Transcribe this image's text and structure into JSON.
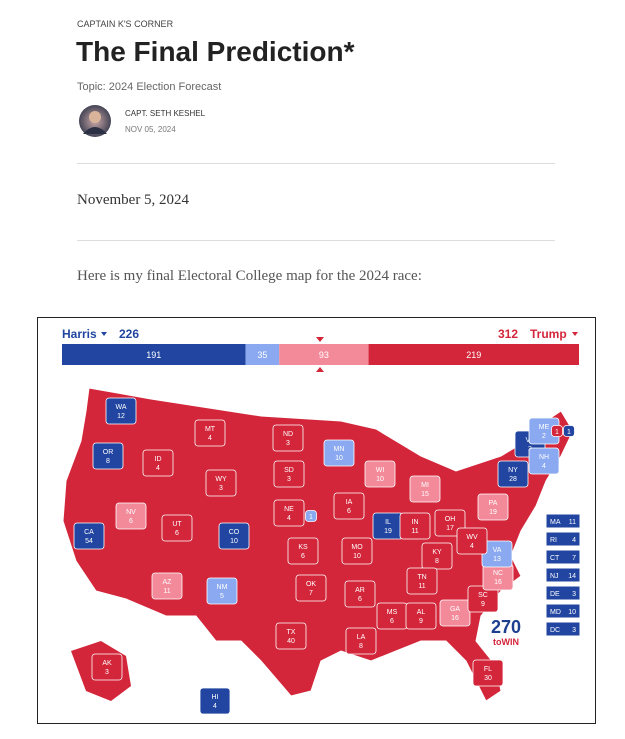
{
  "header": {
    "kicker": "CAPTAIN K'S CORNER",
    "title": "The Final Prediction*",
    "topic": "Topic: 2024 Election Forecast",
    "author": "CAPT. SETH KESHEL",
    "date": "NOV 05, 2024"
  },
  "body": {
    "dateline": "November 5, 2024",
    "intro": "Here is my final Electoral College map for the 2024 race:"
  },
  "map": {
    "left": {
      "name": "Harris",
      "total": 226,
      "color": "#2145a0"
    },
    "right": {
      "name": "Trump",
      "total": 312,
      "color": "#d3263a"
    },
    "bar": [
      {
        "value": 191,
        "color": "#2145a0"
      },
      {
        "value": 35,
        "color": "#8aa9f0"
      },
      {
        "value": 93,
        "color": "#f38a9a"
      },
      {
        "value": 219,
        "color": "#d3263a"
      }
    ],
    "states": [
      {
        "abbr": "WA",
        "votes": 12,
        "color": "#2145a0"
      },
      {
        "abbr": "OR",
        "votes": 8,
        "color": "#2145a0"
      },
      {
        "abbr": "CA",
        "votes": 54,
        "color": "#2145a0"
      },
      {
        "abbr": "NV",
        "votes": 6,
        "color": "#f38a9a"
      },
      {
        "abbr": "ID",
        "votes": 4,
        "color": "#d3263a"
      },
      {
        "abbr": "MT",
        "votes": 4,
        "color": "#d3263a"
      },
      {
        "abbr": "WY",
        "votes": 3,
        "color": "#d3263a"
      },
      {
        "abbr": "UT",
        "votes": 6,
        "color": "#d3263a"
      },
      {
        "abbr": "CO",
        "votes": 10,
        "color": "#2145a0"
      },
      {
        "abbr": "AZ",
        "votes": 11,
        "color": "#f38a9a"
      },
      {
        "abbr": "NM",
        "votes": 5,
        "color": "#8aa9f0"
      },
      {
        "abbr": "ND",
        "votes": 3,
        "color": "#d3263a"
      },
      {
        "abbr": "SD",
        "votes": 3,
        "color": "#d3263a"
      },
      {
        "abbr": "NE",
        "votes": 4,
        "color": "#d3263a"
      },
      {
        "votes": 1,
        "color": "#8aa9f0"
      },
      {
        "abbr": "KS",
        "votes": 6,
        "color": "#d3263a"
      },
      {
        "abbr": "OK",
        "votes": 7,
        "color": "#d3263a"
      },
      {
        "abbr": "TX",
        "votes": 40,
        "color": "#d3263a"
      },
      {
        "abbr": "MN",
        "votes": 10,
        "color": "#8aa9f0"
      },
      {
        "abbr": "IA",
        "votes": 6,
        "color": "#d3263a"
      },
      {
        "abbr": "MO",
        "votes": 10,
        "color": "#d3263a"
      },
      {
        "abbr": "AR",
        "votes": 6,
        "color": "#d3263a"
      },
      {
        "abbr": "LA",
        "votes": 8,
        "color": "#d3263a"
      },
      {
        "abbr": "WI",
        "votes": 10,
        "color": "#f38a9a"
      },
      {
        "abbr": "IL",
        "votes": 19,
        "color": "#2145a0"
      },
      {
        "abbr": "MS",
        "votes": 6,
        "color": "#d3263a"
      },
      {
        "abbr": "MI",
        "votes": 15,
        "color": "#f38a9a"
      },
      {
        "abbr": "IN",
        "votes": 11,
        "color": "#d3263a"
      },
      {
        "abbr": "KY",
        "votes": 8,
        "color": "#d3263a"
      },
      {
        "abbr": "TN",
        "votes": 11,
        "color": "#d3263a"
      },
      {
        "abbr": "AL",
        "votes": 9,
        "color": "#d3263a"
      },
      {
        "abbr": "OH",
        "votes": 17,
        "color": "#d3263a"
      },
      {
        "abbr": "GA",
        "votes": 16,
        "color": "#f38a9a"
      },
      {
        "abbr": "FL",
        "votes": 30,
        "color": "#d3263a"
      },
      {
        "abbr": "SC",
        "votes": 9,
        "color": "#d3263a"
      },
      {
        "abbr": "NC",
        "votes": 16,
        "color": "#f38a9a"
      },
      {
        "abbr": "VA",
        "votes": 13,
        "color": "#8aa9f0"
      },
      {
        "abbr": "WV",
        "votes": 4,
        "color": "#d3263a"
      },
      {
        "abbr": "PA",
        "votes": 19,
        "color": "#f38a9a"
      },
      {
        "abbr": "NY",
        "votes": 28,
        "color": "#2145a0"
      },
      {
        "abbr": "VT",
        "votes": 3,
        "color": "#2145a0"
      },
      {
        "abbr": "NH",
        "votes": 4,
        "color": "#8aa9f0"
      },
      {
        "abbr": "ME",
        "votes": 2,
        "color": "#8aa9f0"
      },
      {
        "votes": 1,
        "color": "#d3263a"
      },
      {
        "votes": 1,
        "color": "#2145a0"
      },
      {
        "abbr": "AK",
        "votes": 3,
        "color": "#d3263a"
      },
      {
        "abbr": "HI",
        "votes": 4,
        "color": "#2145a0"
      }
    ],
    "small_states": [
      {
        "abbr": "MA",
        "votes": 11,
        "color": "#2145a0"
      },
      {
        "abbr": "RI",
        "votes": 4,
        "color": "#2145a0"
      },
      {
        "abbr": "CT",
        "votes": 7,
        "color": "#2145a0"
      },
      {
        "abbr": "NJ",
        "votes": 14,
        "color": "#2145a0"
      },
      {
        "abbr": "DE",
        "votes": 3,
        "color": "#2145a0"
      },
      {
        "abbr": "MD",
        "votes": 10,
        "color": "#2145a0"
      },
      {
        "abbr": "DC",
        "votes": 3,
        "color": "#2145a0"
      }
    ],
    "logo": {
      "number": "270",
      "text": "toWIN"
    }
  }
}
